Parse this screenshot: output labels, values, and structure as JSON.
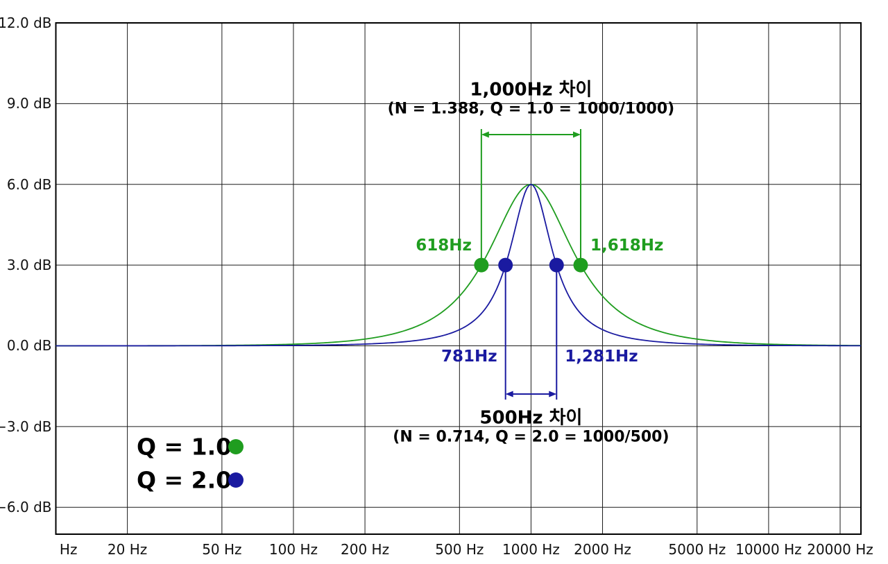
{
  "chart_data": {
    "type": "line",
    "title": "",
    "x_axis": {
      "unit": "Hz",
      "scale": "log",
      "min_hz": 10,
      "max_hz": 24470,
      "ticks": [
        {
          "f": 10,
          "label_anchor_f": 11.3,
          "label": "Hz"
        },
        {
          "f": 20,
          "label_anchor_f": 20,
          "label": "20 Hz"
        },
        {
          "f": 50,
          "label_anchor_f": 50,
          "label": "50 Hz"
        },
        {
          "f": 100,
          "label_anchor_f": 100,
          "label": "100 Hz"
        },
        {
          "f": 200,
          "label_anchor_f": 200,
          "label": "200 Hz"
        },
        {
          "f": 500,
          "label_anchor_f": 500,
          "label": "500 Hz"
        },
        {
          "f": 1000,
          "label_anchor_f": 1000,
          "label": "1000 Hz"
        },
        {
          "f": 2000,
          "label_anchor_f": 2000,
          "label": "2000 Hz"
        },
        {
          "f": 5000,
          "label_anchor_f": 5000,
          "label": "5000 Hz"
        },
        {
          "f": 10000,
          "label_anchor_f": 10000,
          "label": "10000 Hz"
        },
        {
          "f": 20000,
          "label_anchor_f": 20000,
          "label": "20000 Hz"
        }
      ]
    },
    "y_axis": {
      "unit": "dB",
      "min_db": -7,
      "max_db": 12,
      "ticks": [
        {
          "db": 12,
          "label": "12.0 dB"
        },
        {
          "db": 9,
          "label": "9.0 dB"
        },
        {
          "db": 6,
          "label": "6.0 dB"
        },
        {
          "db": 3,
          "label": "3.0 dB"
        },
        {
          "db": 0,
          "label": "0.0 dB"
        },
        {
          "db": -3,
          "label": "−3.0 dB"
        },
        {
          "db": -6,
          "label": "−6.0 dB"
        }
      ]
    },
    "series": [
      {
        "name": "Q = 1.0",
        "q": 1.0,
        "gain_db": 6.0,
        "center_hz": 1000,
        "color": "#1f9d1f",
        "formula": "db(f) = gain_db / (1 + (q*(f/f0 - f0/f))^2)",
        "key_points": [
          {
            "f": 618,
            "db": 3
          },
          {
            "f": 1000,
            "db": 6
          },
          {
            "f": 1618,
            "db": 3
          }
        ],
        "bandwidth_hz": 1000
      },
      {
        "name": "Q = 2.0",
        "q": 2.0,
        "gain_db": 6.0,
        "center_hz": 1000,
        "color": "#1a1aa0",
        "formula": "db(f) = gain_db / (1 + (q*(f/f0 - f0/f))^2)",
        "key_points": [
          {
            "f": 781,
            "db": 3
          },
          {
            "f": 1000,
            "db": 6
          },
          {
            "f": 1281,
            "db": 3
          }
        ],
        "bandwidth_hz": 500
      }
    ],
    "markers": {
      "marker_db": 3,
      "q1": [
        {
          "f": 618,
          "label": "618Hz"
        },
        {
          "f": 1618,
          "label": "1,618Hz"
        }
      ],
      "q2": [
        {
          "f": 781,
          "label": "781Hz"
        },
        {
          "f": 1281,
          "label": "1,281Hz"
        }
      ]
    },
    "annotations": {
      "top": {
        "title": "1,000Hz 차이",
        "formula": "(N = 1.388, Q = 1.0 = 1000/1000)",
        "f1": 618,
        "f2": 1618,
        "color": "#1f9d1f"
      },
      "bottom": {
        "title": "500Hz 차이",
        "formula": "(N = 0.714, Q = 2.0 = 1000/500)",
        "f1": 781,
        "f2": 1281,
        "color": "#1a1aa0"
      }
    },
    "legend": {
      "position": "bottom-left",
      "items": [
        {
          "label": "Q = 1.0",
          "color": "#1f9d1f"
        },
        {
          "label": "Q = 2.0",
          "color": "#1a1aa0"
        }
      ]
    },
    "grid": {
      "on": true,
      "color": "#1a1a1a"
    }
  }
}
